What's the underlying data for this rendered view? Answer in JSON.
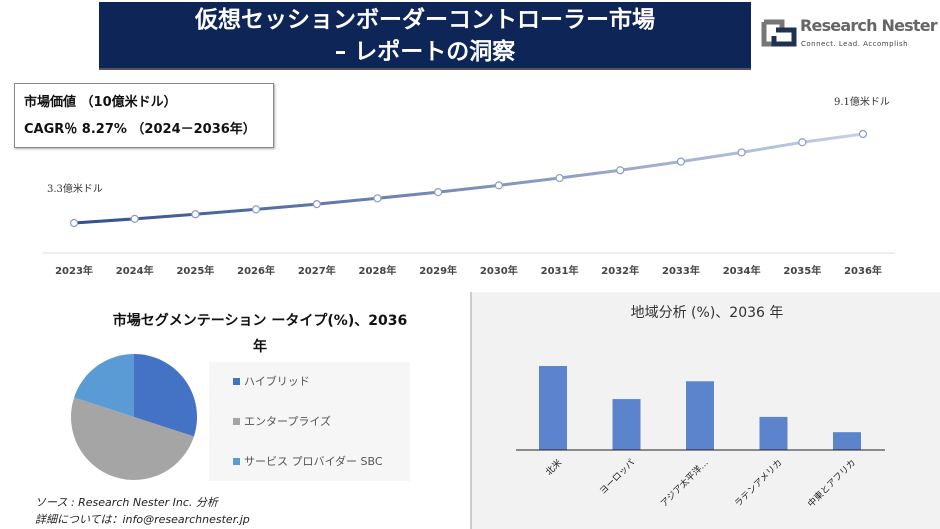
{
  "header": {
    "title_line1": "仮想セッションボーダーコントローラー市場",
    "title_line2": "– レポートの洞察",
    "logo_name": "Research Nester",
    "logo_tagline": "Connect. Lead. Accomplish"
  },
  "info": {
    "market_value_label": "市場価値 （10億米ドル）",
    "cagr_label": "CAGR％ 8.27% （2024－2036年）"
  },
  "chart_data": [
    {
      "type": "line",
      "categories": [
        "2023年",
        "2024年",
        "2025年",
        "2026年",
        "2027年",
        "2028年",
        "2029年",
        "2030年",
        "2031年",
        "2032年",
        "2033年",
        "2034年",
        "2035年",
        "2036年"
      ],
      "values": [
        3.3,
        3.57,
        3.87,
        4.19,
        4.53,
        4.91,
        5.31,
        5.75,
        6.23,
        6.74,
        7.3,
        7.9,
        8.56,
        9.1
      ],
      "annotations": {
        "start": "3.3億米ドル",
        "end": "9.1億米ドル"
      },
      "colors": [
        "#2f4f8f",
        "#c9d0e6"
      ],
      "grid": false
    },
    {
      "type": "pie",
      "title": "市場セグメンテーション ータイプ(%)、2036年",
      "title_line1": "市場セグメンテーション ータイプ(%)、2036",
      "title_line2": "年",
      "labels": [
        "ハイブリッド",
        "エンタープライズ",
        "サービス プロバイダー SBC"
      ],
      "values": [
        30,
        50,
        20
      ],
      "colors": [
        "#4472c4",
        "#a5a5a5",
        "#5b9bd5"
      ],
      "legend": "right"
    },
    {
      "type": "bar",
      "title": "地域分析 (%)、2036 年",
      "categories": [
        "北米",
        "ヨーロッパ",
        "アジア太平洋…",
        "ラテンアメリカ",
        "中東とアフリカ"
      ],
      "values": [
        33,
        20,
        27,
        13,
        7
      ],
      "color": "#5b84cc"
    }
  ],
  "footer": {
    "source": "ソース : Research Nester Inc. 分析",
    "contact": "詳細については：info@researchnester.jp"
  }
}
